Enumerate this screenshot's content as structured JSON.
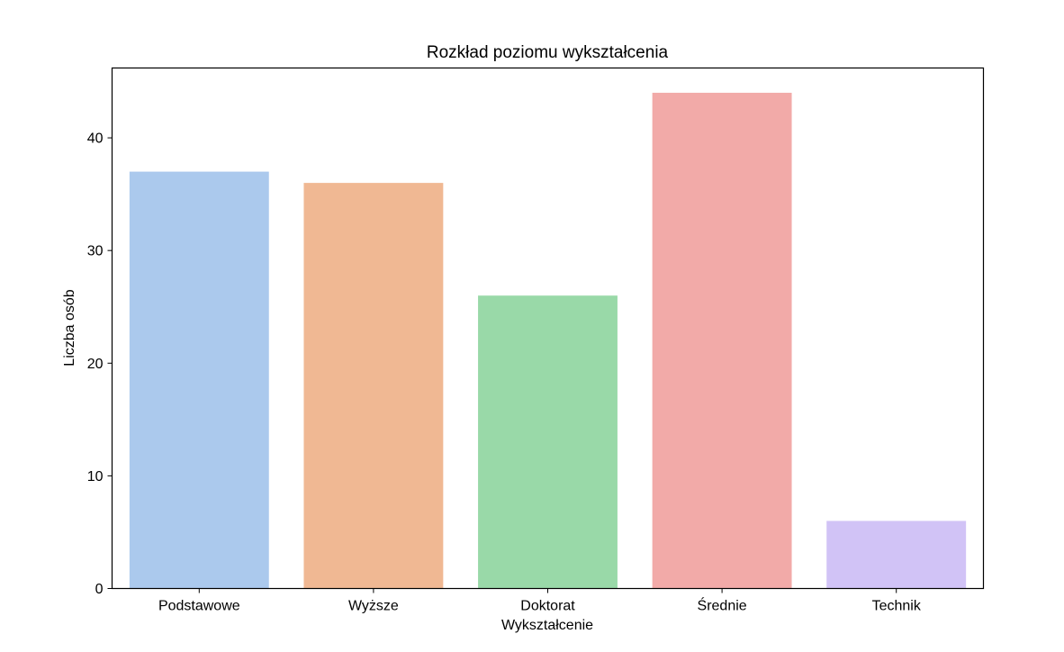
{
  "chart_data": {
    "type": "bar",
    "title": "Rozkład poziomu wykształcenia",
    "xlabel": "Wykształcenie",
    "ylabel": "Liczba osób",
    "categories": [
      "Podstawowe",
      "Wyższe",
      "Doktorat",
      "Średnie",
      "Technik"
    ],
    "values": [
      37,
      36,
      26,
      44,
      6
    ],
    "colors": [
      "#abc9ed",
      "#f0b893",
      "#99d9a8",
      "#f2aaa8",
      "#d1c3f6"
    ],
    "ylim": [
      0,
      46.2
    ],
    "yticks": [
      0,
      10,
      20,
      30,
      40
    ],
    "grid": false,
    "legend": "none"
  }
}
